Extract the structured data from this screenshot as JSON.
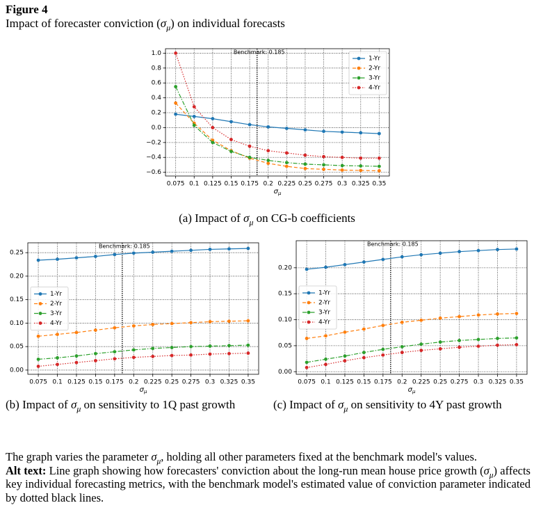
{
  "figure_label": "Figure 4",
  "figure_title": [
    "Impact of forecaster conviction (",
    {
      "sym": "σ",
      "sub": "μ"
    },
    ") on individual forecasts"
  ],
  "chart_data": [
    {
      "type": "line",
      "caption": [
        "(a) Impact of ",
        {
          "sym": "σ",
          "sub": "μ"
        },
        " on CG-b coefficients"
      ],
      "xlabel": {
        "sym": "σ",
        "sub": "μ"
      },
      "x": [
        0.075,
        0.1,
        0.125,
        0.15,
        0.175,
        0.2,
        0.225,
        0.25,
        0.275,
        0.3,
        0.325,
        0.35
      ],
      "xlim": [
        0.06125,
        0.36375
      ],
      "xticks": [
        0.075,
        0.1,
        0.125,
        0.15,
        0.175,
        0.2,
        0.225,
        0.25,
        0.275,
        0.3,
        0.325,
        0.35
      ],
      "ylim": [
        -0.65,
        1.06
      ],
      "yticks": [
        {
          "value": -0.6,
          "label": "−0.6"
        },
        {
          "value": -0.4,
          "label": "−0.4"
        },
        {
          "value": -0.2,
          "label": "−0.2"
        },
        {
          "value": 0,
          "label": "0.0"
        },
        0.2,
        0.4,
        0.6,
        0.8,
        {
          "value": 1,
          "label": "1.0"
        }
      ],
      "grid": true,
      "legend": "upper right",
      "benchmark": {
        "value": 0.185,
        "label": "Benchmark: 0.185"
      },
      "series": [
        {
          "name": "1-Yr",
          "color": "#1f77b4",
          "dash": "solid",
          "values": [
            0.18,
            0.15,
            0.12,
            0.08,
            0.04,
            0.01,
            -0.01,
            -0.03,
            -0.05,
            -0.06,
            -0.07,
            -0.08
          ]
        },
        {
          "name": "2-Yr",
          "color": "#ff7f0e",
          "dash": "dashed",
          "values": [
            0.33,
            0.06,
            -0.17,
            -0.31,
            -0.41,
            -0.48,
            -0.52,
            -0.55,
            -0.56,
            -0.57,
            -0.575,
            -0.58
          ]
        },
        {
          "name": "3-Yr",
          "color": "#2ca02c",
          "dash": "dashdot",
          "values": [
            0.55,
            0.03,
            -0.2,
            -0.32,
            -0.4,
            -0.44,
            -0.47,
            -0.49,
            -0.5,
            -0.51,
            -0.515,
            -0.52
          ]
        },
        {
          "name": "4-Yr",
          "color": "#d62728",
          "dash": "dotted",
          "values": [
            1.0,
            0.28,
            0.0,
            -0.16,
            -0.25,
            -0.31,
            -0.34,
            -0.37,
            -0.39,
            -0.4,
            -0.41,
            -0.41
          ]
        }
      ]
    },
    {
      "type": "line",
      "caption": [
        "(b) Impact of ",
        {
          "sym": "σ",
          "sub": "μ"
        },
        " on sensitivity to 1Q past growth"
      ],
      "xlabel": {
        "sym": "σ",
        "sub": "μ"
      },
      "x": [
        0.075,
        0.1,
        0.125,
        0.15,
        0.175,
        0.2,
        0.225,
        0.25,
        0.275,
        0.3,
        0.325,
        0.35
      ],
      "xlim": [
        0.06125,
        0.36375
      ],
      "xticks": [
        0.075,
        0.1,
        0.125,
        0.15,
        0.175,
        0.2,
        0.225,
        0.25,
        0.275,
        0.3,
        0.325,
        0.35
      ],
      "ylim": [
        -0.009,
        0.271
      ],
      "yticks": [
        {
          "value": 0,
          "label": "0.00"
        },
        0.05,
        {
          "value": 0.1,
          "label": "0.10"
        },
        0.15,
        {
          "value": 0.2,
          "label": "0.20"
        },
        0.25
      ],
      "grid": true,
      "legend": "center left",
      "benchmark": {
        "value": 0.185,
        "label": "Benchmark: 0.185"
      },
      "series": [
        {
          "name": "1-Yr",
          "color": "#1f77b4",
          "dash": "solid",
          "values": [
            0.234,
            0.236,
            0.239,
            0.242,
            0.246,
            0.249,
            0.251,
            0.253,
            0.255,
            0.257,
            0.258,
            0.259
          ]
        },
        {
          "name": "2-Yr",
          "color": "#ff7f0e",
          "dash": "dashed",
          "values": [
            0.072,
            0.076,
            0.08,
            0.085,
            0.09,
            0.094,
            0.097,
            0.099,
            0.101,
            0.103,
            0.104,
            0.105
          ]
        },
        {
          "name": "3-Yr",
          "color": "#2ca02c",
          "dash": "dashdot",
          "values": [
            0.023,
            0.026,
            0.03,
            0.035,
            0.039,
            0.043,
            0.046,
            0.048,
            0.05,
            0.051,
            0.052,
            0.053
          ]
        },
        {
          "name": "4-Yr",
          "color": "#d62728",
          "dash": "dotted",
          "values": [
            0.008,
            0.012,
            0.016,
            0.02,
            0.024,
            0.027,
            0.029,
            0.031,
            0.032,
            0.034,
            0.035,
            0.036
          ]
        }
      ]
    },
    {
      "type": "line",
      "caption": [
        "(c) Impact of ",
        {
          "sym": "σ",
          "sub": "μ"
        },
        " on sensitivity to 4Y past growth"
      ],
      "xlabel": {
        "sym": "σ",
        "sub": "μ"
      },
      "x": [
        0.075,
        0.1,
        0.125,
        0.15,
        0.175,
        0.2,
        0.225,
        0.25,
        0.275,
        0.3,
        0.325,
        0.35
      ],
      "xlim": [
        0.06125,
        0.36375
      ],
      "xticks": [
        0.075,
        0.1,
        0.125,
        0.15,
        0.175,
        0.2,
        0.225,
        0.25,
        0.275,
        0.3,
        0.325,
        0.35
      ],
      "ylim": [
        -0.005,
        0.252
      ],
      "yticks": [
        {
          "value": 0,
          "label": "0.00"
        },
        0.05,
        {
          "value": 0.1,
          "label": "0.10"
        },
        0.15,
        {
          "value": 0.2,
          "label": "0.20"
        }
      ],
      "grid": true,
      "legend": "center left",
      "benchmark": {
        "value": 0.185,
        "label": "Benchmark: 0.185"
      },
      "series": [
        {
          "name": "1-Yr",
          "color": "#1f77b4",
          "dash": "solid",
          "values": [
            0.197,
            0.201,
            0.206,
            0.211,
            0.216,
            0.221,
            0.225,
            0.228,
            0.231,
            0.233,
            0.235,
            0.236
          ]
        },
        {
          "name": "2-Yr",
          "color": "#ff7f0e",
          "dash": "dashed",
          "values": [
            0.064,
            0.069,
            0.076,
            0.082,
            0.089,
            0.095,
            0.099,
            0.103,
            0.106,
            0.109,
            0.111,
            0.112
          ]
        },
        {
          "name": "3-Yr",
          "color": "#2ca02c",
          "dash": "dashdot",
          "values": [
            0.018,
            0.024,
            0.03,
            0.037,
            0.043,
            0.048,
            0.053,
            0.057,
            0.06,
            0.062,
            0.064,
            0.065
          ]
        },
        {
          "name": "4-Yr",
          "color": "#d62728",
          "dash": "dotted",
          "values": [
            0.008,
            0.014,
            0.021,
            0.027,
            0.032,
            0.037,
            0.041,
            0.044,
            0.047,
            0.049,
            0.051,
            0.052
          ]
        }
      ]
    }
  ],
  "notes": [
    [
      "The graph varies the parameter ",
      {
        "sym": "σ",
        "sub": "μ"
      },
      ", holding all other parameters fixed at the benchmark model's values."
    ],
    [
      {
        "bold": "Alt text:"
      },
      " Line graph showing how forecasters' conviction about the long-run mean house price growth (",
      {
        "sym": "σ",
        "sub": "μ"
      },
      ") affects key individual forecasting metrics, with the benchmark model's estimated value of conviction parameter indicated by dotted black lines."
    ]
  ]
}
